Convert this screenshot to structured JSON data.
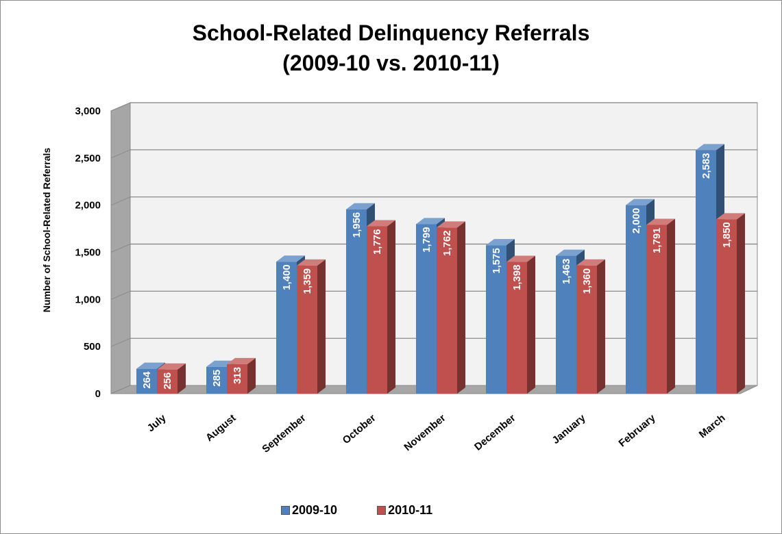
{
  "chart_data": {
    "type": "bar",
    "title_lines": [
      "School-Related Delinquency Referrals",
      "(2009-10 vs. 2010-11)"
    ],
    "ylabel": "Number of School-Related  Referrals",
    "xlabel": "",
    "categories": [
      "July",
      "August",
      "September",
      "October",
      "November",
      "December",
      "January",
      "February",
      "March"
    ],
    "series": [
      {
        "name": "2009-10",
        "color": "#4f81bd",
        "values": [
          264,
          285,
          1400,
          1956,
          1799,
          1575,
          1463,
          2000,
          2583
        ],
        "labels": [
          "264",
          "285",
          "1,400",
          "1,956",
          "1,799",
          "1,575",
          "1,463",
          "2,000",
          "2,583"
        ]
      },
      {
        "name": "2010-11",
        "color": "#c0504d",
        "values": [
          256,
          313,
          1359,
          1776,
          1762,
          1398,
          1360,
          1791,
          1850
        ],
        "labels": [
          "256",
          "313",
          "1,359",
          "1,776",
          "1,762",
          "1,398",
          "1,360",
          "1,791",
          "1,850"
        ]
      }
    ],
    "ylim": [
      0,
      3000
    ],
    "yticks": [
      0,
      500,
      1000,
      1500,
      2000,
      2500,
      3000
    ],
    "ytick_labels": [
      "0",
      "500",
      "1,000",
      "1,500",
      "2,000",
      "2,500",
      "3,000"
    ],
    "grid": true,
    "style": "3d-clustered-column",
    "legend_position": "bottom"
  }
}
